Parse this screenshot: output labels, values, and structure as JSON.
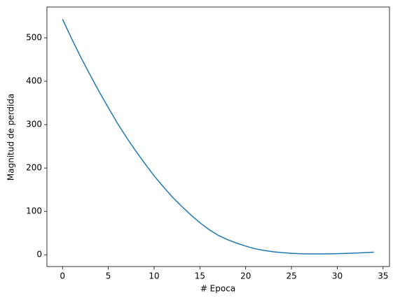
{
  "chart_data": {
    "type": "line",
    "x_label": "# Epoca",
    "y_label": "Magnitud de perdida",
    "x": [
      0,
      1,
      2,
      3,
      4,
      5,
      6,
      7,
      8,
      9,
      10,
      11,
      12,
      13,
      14,
      15,
      16,
      17,
      18,
      19,
      20,
      21,
      22,
      23,
      24,
      25,
      26,
      27,
      28,
      29,
      30,
      31,
      32,
      33,
      34
    ],
    "series": [
      {
        "color": "#1f77b4",
        "values": [
          543,
          498,
          455,
          415,
          376,
          339,
          303,
          270,
          239,
          210,
          182,
          157,
          133,
          112,
          92,
          74,
          58,
          45,
          35,
          27,
          20,
          14,
          10,
          7,
          5,
          3.5,
          2.5,
          2,
          2,
          2.2,
          2.6,
          3.2,
          4,
          5,
          6
        ]
      }
    ],
    "xlim": [
      -1.7,
      35.7
    ],
    "xticks": [
      0,
      5,
      10,
      15,
      20,
      25,
      30,
      35
    ],
    "ylim": [
      -27,
      571
    ],
    "yticks": [
      0,
      100,
      200,
      300,
      400,
      500
    ]
  }
}
